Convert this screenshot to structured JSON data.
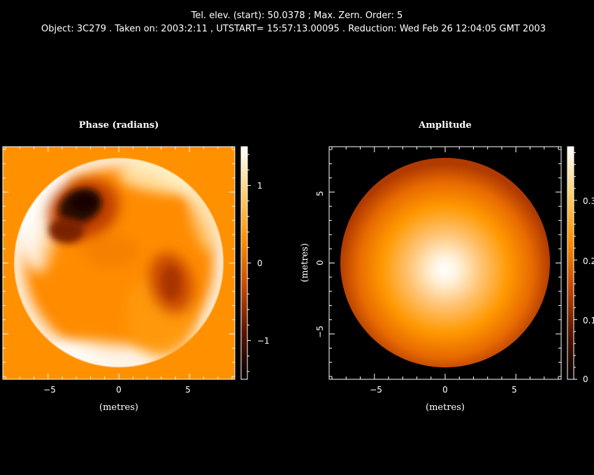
{
  "header": {
    "line1": "Tel. elev. (start): 50.0378 ;  Max. Zern. Order: 5",
    "line2": "Object: 3C279 . Taken on: 2003:2:11 , UTSTART= 15:57:13.00095 . Reduction:  Wed Feb 26 12:04:05 GMT 2003"
  },
  "chart_data": [
    {
      "type": "heatmap",
      "title": "Phase (radians)",
      "xlabel": "(metres)",
      "ylabel": "",
      "xlim": [
        -8.2,
        8.2
      ],
      "ylim": [
        -8.2,
        8.2
      ],
      "x_ticks": [
        "−5",
        "0",
        "5"
      ],
      "x_tick_values": [
        -5,
        0,
        5
      ],
      "pupil_radius": 7.4,
      "background_value": 0,
      "colorbar": {
        "range": [
          -1.5,
          1.5
        ],
        "ticks": [
          "1",
          "0",
          "−1"
        ],
        "tick_values": [
          1,
          0,
          -1
        ]
      },
      "colormap": [
        "#000000",
        "#5a1400",
        "#c84800",
        "#ff9000",
        "#ffd070",
        "#ffffff"
      ]
    },
    {
      "type": "heatmap",
      "title": "Amplitude",
      "xlabel": "(metres)",
      "ylabel": "(metres)",
      "xlim": [
        -8.2,
        8.2
      ],
      "ylim": [
        -8.2,
        8.2
      ],
      "x_ticks": [
        "−5",
        "0",
        "5"
      ],
      "x_tick_values": [
        -5,
        0,
        5
      ],
      "y_ticks": [
        "5",
        "0",
        "−5"
      ],
      "y_tick_values": [
        5,
        0,
        -5
      ],
      "pupil_radius": 7.4,
      "peak_position": [
        0,
        -0.5
      ],
      "peak_value": 0.39,
      "edge_value": 0.18,
      "colorbar": {
        "range": [
          0,
          0.39
        ],
        "ticks": [
          "0.3",
          "0.2",
          "0.1",
          "0"
        ],
        "tick_values": [
          0.3,
          0.2,
          0.1,
          0
        ]
      },
      "colormap": [
        "#000000",
        "#5a1400",
        "#c84800",
        "#ff9000",
        "#ffd070",
        "#ffffff"
      ]
    }
  ]
}
